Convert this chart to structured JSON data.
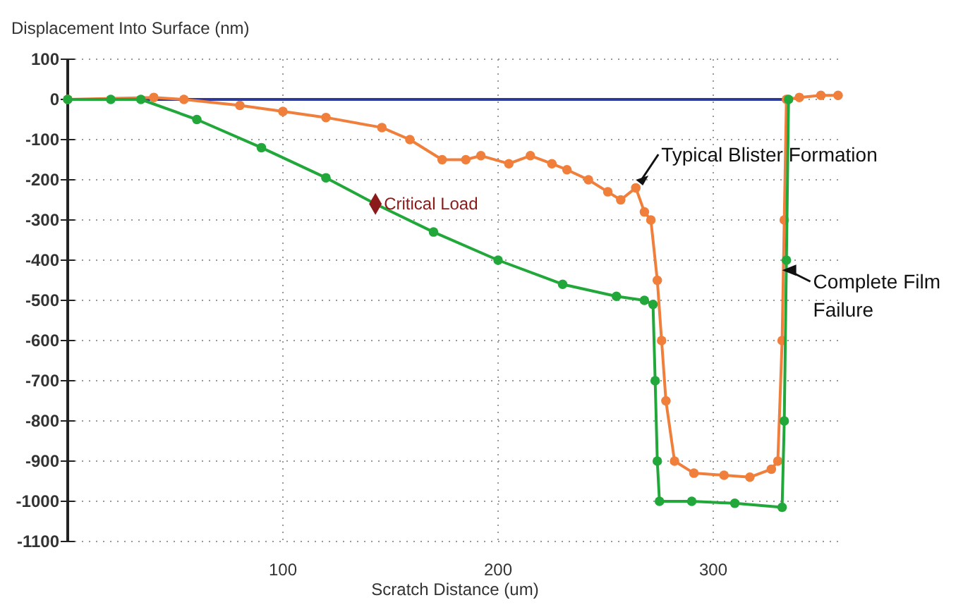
{
  "chart_data": {
    "type": "line",
    "ylabel": "Displacement Into Surface (nm)",
    "xlabel": "Scratch Distance  (um)",
    "xlim": [
      0,
      360
    ],
    "xticks": [
      100,
      200,
      300
    ],
    "ylim": [
      -1100,
      100
    ],
    "yticks": [
      100,
      0,
      -100,
      -200,
      -300,
      -400,
      -500,
      -600,
      -700,
      -800,
      -900,
      -1000,
      -1100
    ],
    "grid": true,
    "line_style": "solid",
    "series": [
      {
        "color": "#2b3a9c",
        "marker": "none",
        "x": [
          0,
          50,
          100,
          150,
          200,
          250,
          300,
          335
        ],
        "values": [
          0,
          0,
          0,
          0,
          0,
          0,
          0,
          0
        ]
      },
      {
        "color": "#f07f3c",
        "marker": "circle",
        "x": [
          0,
          40,
          54,
          80,
          100,
          120,
          146,
          159,
          174,
          185,
          192,
          205,
          215,
          225,
          232,
          242,
          251,
          257,
          264,
          268,
          271,
          274,
          276,
          278,
          282,
          291,
          305,
          317,
          327,
          330,
          332,
          333,
          334,
          340,
          350,
          358
        ],
        "values": [
          0,
          5,
          0,
          -15,
          -30,
          -45,
          -70,
          -100,
          -150,
          -150,
          -140,
          -160,
          -140,
          -160,
          -175,
          -200,
          -230,
          -250,
          -220,
          -280,
          -300,
          -450,
          -600,
          -750,
          -900,
          -930,
          -935,
          -940,
          -920,
          -900,
          -600,
          -300,
          0,
          5,
          10,
          10
        ]
      },
      {
        "color": "#22a83a",
        "marker": "circle",
        "x": [
          0,
          20,
          34,
          60,
          90,
          120,
          143,
          170,
          200,
          230,
          255,
          268,
          272,
          273,
          274,
          275,
          290,
          310,
          332,
          333,
          334,
          335
        ],
        "values": [
          0,
          0,
          0,
          -50,
          -120,
          -195,
          -260,
          -330,
          -400,
          -460,
          -490,
          -500,
          -510,
          -700,
          -900,
          -1000,
          -1000,
          -1005,
          -1015,
          -800,
          -400,
          0
        ]
      },
      {
        "name": "Critical Load",
        "type": "scatter",
        "marker": "diamond",
        "color": "#8b1a1a",
        "x": [
          143
        ],
        "values": [
          -260
        ]
      }
    ],
    "annotations": [
      {
        "text": "Typical Blister Formation",
        "x": 264,
        "y": -200
      },
      {
        "text": "Complete Film Failure",
        "x": 332,
        "y": -425
      }
    ]
  }
}
